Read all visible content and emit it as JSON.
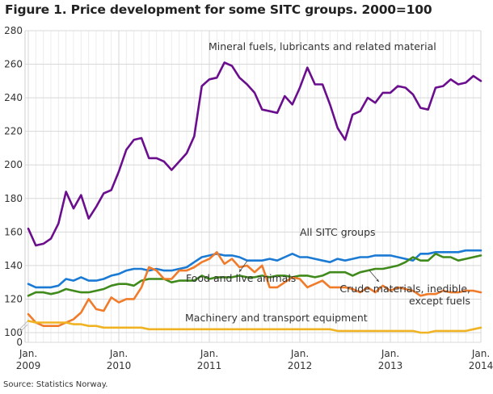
{
  "title": "Figure 1. Price development for some SITC groups. 2000=100",
  "source": "Source: Statistics Norway.",
  "chart_data": {
    "type": "line",
    "title": "Figure 1. Price development for some SITC groups. 2000=100",
    "xlabel": "",
    "ylabel": "",
    "ylim": [
      0,
      280
    ],
    "axis_break": [
      0,
      100
    ],
    "yticks": [
      0,
      100,
      120,
      140,
      160,
      180,
      200,
      220,
      240,
      260,
      280
    ],
    "xticks": [
      {
        "label": [
          "Jan.",
          "2009"
        ],
        "index": 0
      },
      {
        "label": [
          "Jan.",
          "2010"
        ],
        "index": 12
      },
      {
        "label": [
          "Jan.",
          "2011"
        ],
        "index": 24
      },
      {
        "label": [
          "Jan.",
          "2012"
        ],
        "index": 36
      },
      {
        "label": [
          "Jan.",
          "2013"
        ],
        "index": 48
      },
      {
        "label": [
          "Jan.",
          "2014"
        ],
        "index": 60
      }
    ],
    "x_start": "2009-01",
    "x_end": "2014-01",
    "frequency": "monthly",
    "grid": true,
    "series": [
      {
        "name": "Mineral fuels, lubricants and related material",
        "color": "#6a0e8e",
        "values": [
          162,
          152,
          153,
          156,
          165,
          184,
          174,
          182,
          168,
          175,
          183,
          185,
          196,
          209,
          215,
          216,
          204,
          204,
          202,
          197,
          202,
          207,
          217,
          247,
          251,
          252,
          261,
          259,
          252,
          248,
          243,
          233,
          232,
          231,
          241,
          236,
          246,
          258,
          248,
          248,
          236,
          222,
          215,
          230,
          232,
          240,
          237,
          243,
          243,
          247,
          246,
          242,
          234,
          233,
          246,
          247,
          251,
          248,
          249,
          253,
          250
        ]
      },
      {
        "name": "All SITC groups",
        "color": "#1a7ad4",
        "values": [
          129,
          127,
          127,
          127,
          128,
          132,
          131,
          133,
          131,
          131,
          132,
          134,
          135,
          137,
          138,
          138,
          137,
          138,
          137,
          137,
          138,
          139,
          142,
          145,
          146,
          147,
          146,
          146,
          145,
          143,
          143,
          143,
          144,
          143,
          145,
          147,
          145,
          145,
          144,
          143,
          142,
          144,
          143,
          144,
          145,
          145,
          146,
          146,
          146,
          145,
          144,
          143,
          147,
          147,
          148,
          148,
          148,
          148,
          149,
          149,
          149
        ]
      },
      {
        "name": "Food and live animals",
        "color": "#3f8a1a",
        "values": [
          122,
          124,
          124,
          123,
          124,
          126,
          125,
          124,
          124,
          125,
          126,
          128,
          129,
          129,
          128,
          131,
          132,
          132,
          132,
          130,
          131,
          131,
          131,
          134,
          132,
          133,
          133,
          133,
          134,
          133,
          133,
          134,
          133,
          134,
          134,
          133,
          134,
          134,
          133,
          134,
          136,
          136,
          136,
          134,
          136,
          137,
          138,
          138,
          139,
          140,
          142,
          145,
          143,
          143,
          147,
          145,
          145,
          143,
          144,
          145,
          146
        ]
      },
      {
        "name": "Crude materials, inedible, except fuels",
        "color": "#f07b2a",
        "values": [
          111,
          106,
          104,
          104,
          104,
          106,
          108,
          112,
          120,
          114,
          113,
          121,
          118,
          120,
          120,
          127,
          139,
          137,
          132,
          132,
          137,
          137,
          139,
          142,
          144,
          148,
          141,
          144,
          139,
          140,
          136,
          140,
          127,
          127,
          130,
          133,
          132,
          127,
          129,
          131,
          127,
          127,
          127,
          126,
          124,
          127,
          124,
          128,
          125,
          127,
          126,
          125,
          122,
          123,
          123,
          125,
          124,
          124,
          125,
          125,
          124
        ]
      },
      {
        "name": "Machinery and transport equipment",
        "color": "#f0b323",
        "values": [
          107,
          106,
          106,
          106,
          106,
          106,
          105,
          105,
          104,
          104,
          103,
          103,
          103,
          103,
          103,
          103,
          102,
          102,
          102,
          102,
          102,
          102,
          102,
          102,
          102,
          102,
          102,
          102,
          102,
          102,
          102,
          102,
          102,
          102,
          102,
          102,
          102,
          102,
          102,
          102,
          102,
          101,
          101,
          101,
          101,
          101,
          101,
          101,
          101,
          101,
          101,
          101,
          100,
          100,
          101,
          101,
          101,
          101,
          101,
          102,
          103
        ]
      }
    ],
    "annotations": [
      {
        "text": "Mineral fuels, lubricants and related material",
        "series": "Mineral fuels, lubricants and related material"
      },
      {
        "text": "All SITC groups",
        "series": "All SITC groups"
      },
      {
        "text": "Food and live animals",
        "series": "Food and live animals",
        "arrow": true
      },
      {
        "text": "Crude materials, inedible,",
        "text2": "except fuels",
        "series": "Crude materials, inedible, except fuels",
        "arrow": true
      },
      {
        "text": "Machinery and transport equipment",
        "series": "Machinery and transport equipment"
      }
    ],
    "legend": "none (inline annotations)"
  }
}
